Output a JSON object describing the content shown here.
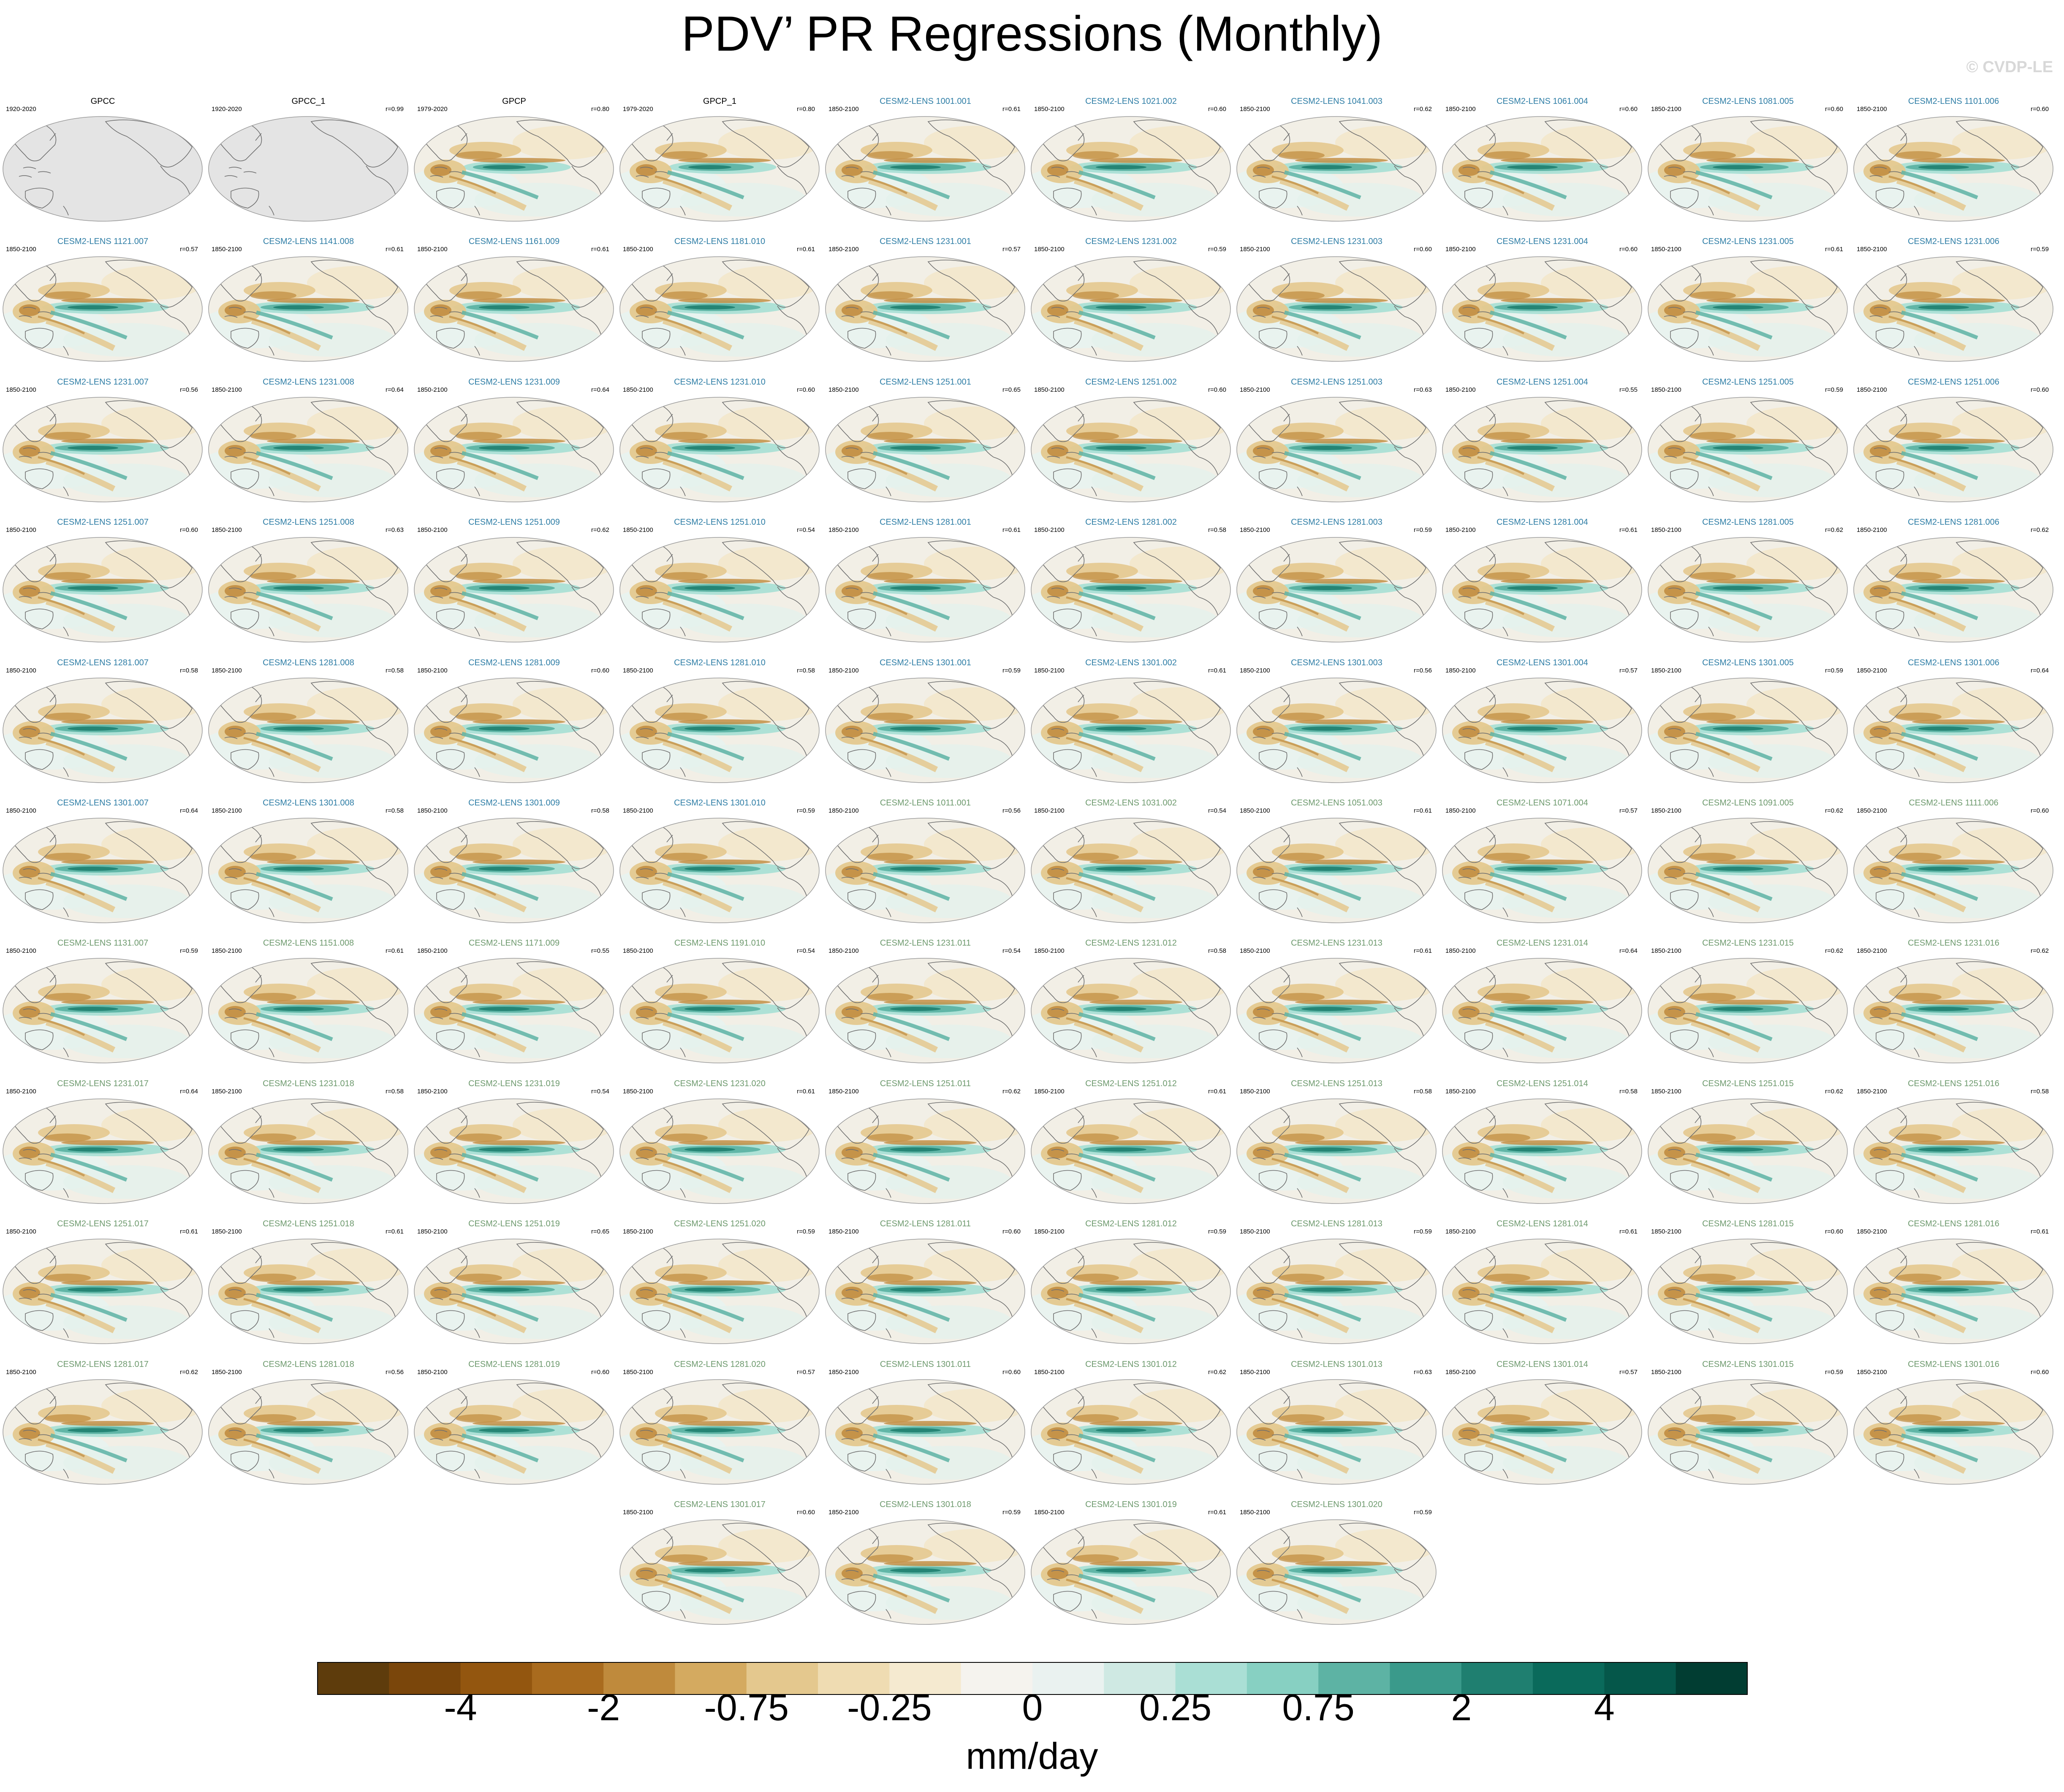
{
  "title": "PDV’ PR Regressions (Monthly)",
  "credit": "© CVDP-LE",
  "chart_data": {
    "type": "heatmap",
    "title": "PDV’ PR Regressions (Monthly)",
    "units": "mm/day",
    "colorbar": {
      "tick_labels": [
        "-4",
        "-2",
        "-0.75",
        "-0.25",
        "0",
        "0.25",
        "0.75",
        "2",
        "4"
      ],
      "colors": [
        "#5e3c0c",
        "#7a460b",
        "#93560f",
        "#a96b1e",
        "#bf8a3c",
        "#d4aa60",
        "#e4c88e",
        "#efdcb2",
        "#f5ead0",
        "#f5f3ee",
        "#eaf2f0",
        "#cfe9e3",
        "#aadfd5",
        "#87d0c2",
        "#5db3a4",
        "#3a9a8b",
        "#1f7f70",
        "#0a6a5b",
        "#05574a",
        "#013d32"
      ]
    },
    "panels": [
      {
        "name": "GPCC",
        "period": "1920-2020",
        "r": "",
        "kind": "obs",
        "style": "obs"
      },
      {
        "name": "GPCC_1",
        "period": "1920-2020",
        "r": "r=0.99",
        "kind": "obs",
        "style": "obs"
      },
      {
        "name": "GPCP",
        "period": "1979-2020",
        "r": "r=0.80",
        "kind": "gpcp",
        "style": "obs"
      },
      {
        "name": "GPCP_1",
        "period": "1979-2020",
        "r": "r=0.80",
        "kind": "gpcp",
        "style": "obs"
      },
      {
        "name": "CESM2-LENS 1001.001",
        "period": "1850-2100",
        "r": "r=0.61",
        "kind": "model",
        "style": "blue"
      },
      {
        "name": "CESM2-LENS 1021.002",
        "period": "1850-2100",
        "r": "r=0.60",
        "kind": "model",
        "style": "blue"
      },
      {
        "name": "CESM2-LENS 1041.003",
        "period": "1850-2100",
        "r": "r=0.62",
        "kind": "model",
        "style": "blue"
      },
      {
        "name": "CESM2-LENS 1061.004",
        "period": "1850-2100",
        "r": "r=0.60",
        "kind": "model",
        "style": "blue"
      },
      {
        "name": "CESM2-LENS 1081.005",
        "period": "1850-2100",
        "r": "r=0.60",
        "kind": "model",
        "style": "blue"
      },
      {
        "name": "CESM2-LENS 1101.006",
        "period": "1850-2100",
        "r": "r=0.60",
        "kind": "model",
        "style": "blue"
      },
      {
        "name": "CESM2-LENS 1121.007",
        "period": "1850-2100",
        "r": "r=0.57",
        "kind": "model",
        "style": "blue"
      },
      {
        "name": "CESM2-LENS 1141.008",
        "period": "1850-2100",
        "r": "r=0.61",
        "kind": "model",
        "style": "blue"
      },
      {
        "name": "CESM2-LENS 1161.009",
        "period": "1850-2100",
        "r": "r=0.61",
        "kind": "model",
        "style": "blue"
      },
      {
        "name": "CESM2-LENS 1181.010",
        "period": "1850-2100",
        "r": "r=0.61",
        "kind": "model",
        "style": "blue"
      },
      {
        "name": "CESM2-LENS 1231.001",
        "period": "1850-2100",
        "r": "r=0.57",
        "kind": "model",
        "style": "blue"
      },
      {
        "name": "CESM2-LENS 1231.002",
        "period": "1850-2100",
        "r": "r=0.59",
        "kind": "model",
        "style": "blue"
      },
      {
        "name": "CESM2-LENS 1231.003",
        "period": "1850-2100",
        "r": "r=0.60",
        "kind": "model",
        "style": "blue"
      },
      {
        "name": "CESM2-LENS 1231.004",
        "period": "1850-2100",
        "r": "r=0.60",
        "kind": "model",
        "style": "blue"
      },
      {
        "name": "CESM2-LENS 1231.005",
        "period": "1850-2100",
        "r": "r=0.61",
        "kind": "model",
        "style": "blue"
      },
      {
        "name": "CESM2-LENS 1231.006",
        "period": "1850-2100",
        "r": "r=0.59",
        "kind": "model",
        "style": "blue"
      },
      {
        "name": "CESM2-LENS 1231.007",
        "period": "1850-2100",
        "r": "r=0.56",
        "kind": "model",
        "style": "blue"
      },
      {
        "name": "CESM2-LENS 1231.008",
        "period": "1850-2100",
        "r": "r=0.64",
        "kind": "model",
        "style": "blue"
      },
      {
        "name": "CESM2-LENS 1231.009",
        "period": "1850-2100",
        "r": "r=0.64",
        "kind": "model",
        "style": "blue"
      },
      {
        "name": "CESM2-LENS 1231.010",
        "period": "1850-2100",
        "r": "r=0.60",
        "kind": "model",
        "style": "blue"
      },
      {
        "name": "CESM2-LENS 1251.001",
        "period": "1850-2100",
        "r": "r=0.65",
        "kind": "model",
        "style": "blue"
      },
      {
        "name": "CESM2-LENS 1251.002",
        "period": "1850-2100",
        "r": "r=0.60",
        "kind": "model",
        "style": "blue"
      },
      {
        "name": "CESM2-LENS 1251.003",
        "period": "1850-2100",
        "r": "r=0.63",
        "kind": "model",
        "style": "blue"
      },
      {
        "name": "CESM2-LENS 1251.004",
        "period": "1850-2100",
        "r": "r=0.55",
        "kind": "model",
        "style": "blue"
      },
      {
        "name": "CESM2-LENS 1251.005",
        "period": "1850-2100",
        "r": "r=0.59",
        "kind": "model",
        "style": "blue"
      },
      {
        "name": "CESM2-LENS 1251.006",
        "period": "1850-2100",
        "r": "r=0.60",
        "kind": "model",
        "style": "blue"
      },
      {
        "name": "CESM2-LENS 1251.007",
        "period": "1850-2100",
        "r": "r=0.60",
        "kind": "model",
        "style": "blue"
      },
      {
        "name": "CESM2-LENS 1251.008",
        "period": "1850-2100",
        "r": "r=0.63",
        "kind": "model",
        "style": "blue"
      },
      {
        "name": "CESM2-LENS 1251.009",
        "period": "1850-2100",
        "r": "r=0.62",
        "kind": "model",
        "style": "blue"
      },
      {
        "name": "CESM2-LENS 1251.010",
        "period": "1850-2100",
        "r": "r=0.54",
        "kind": "model",
        "style": "blue"
      },
      {
        "name": "CESM2-LENS 1281.001",
        "period": "1850-2100",
        "r": "r=0.61",
        "kind": "model",
        "style": "blue"
      },
      {
        "name": "CESM2-LENS 1281.002",
        "period": "1850-2100",
        "r": "r=0.58",
        "kind": "model",
        "style": "blue"
      },
      {
        "name": "CESM2-LENS 1281.003",
        "period": "1850-2100",
        "r": "r=0.59",
        "kind": "model",
        "style": "blue"
      },
      {
        "name": "CESM2-LENS 1281.004",
        "period": "1850-2100",
        "r": "r=0.61",
        "kind": "model",
        "style": "blue"
      },
      {
        "name": "CESM2-LENS 1281.005",
        "period": "1850-2100",
        "r": "r=0.62",
        "kind": "model",
        "style": "blue"
      },
      {
        "name": "CESM2-LENS 1281.006",
        "period": "1850-2100",
        "r": "r=0.62",
        "kind": "model",
        "style": "blue"
      },
      {
        "name": "CESM2-LENS 1281.007",
        "period": "1850-2100",
        "r": "r=0.58",
        "kind": "model",
        "style": "blue"
      },
      {
        "name": "CESM2-LENS 1281.008",
        "period": "1850-2100",
        "r": "r=0.58",
        "kind": "model",
        "style": "blue"
      },
      {
        "name": "CESM2-LENS 1281.009",
        "period": "1850-2100",
        "r": "r=0.60",
        "kind": "model",
        "style": "blue"
      },
      {
        "name": "CESM2-LENS 1281.010",
        "period": "1850-2100",
        "r": "r=0.58",
        "kind": "model",
        "style": "blue"
      },
      {
        "name": "CESM2-LENS 1301.001",
        "period": "1850-2100",
        "r": "r=0.59",
        "kind": "model",
        "style": "blue"
      },
      {
        "name": "CESM2-LENS 1301.002",
        "period": "1850-2100",
        "r": "r=0.61",
        "kind": "model",
        "style": "blue"
      },
      {
        "name": "CESM2-LENS 1301.003",
        "period": "1850-2100",
        "r": "r=0.56",
        "kind": "model",
        "style": "blue"
      },
      {
        "name": "CESM2-LENS 1301.004",
        "period": "1850-2100",
        "r": "r=0.57",
        "kind": "model",
        "style": "blue"
      },
      {
        "name": "CESM2-LENS 1301.005",
        "period": "1850-2100",
        "r": "r=0.59",
        "kind": "model",
        "style": "blue"
      },
      {
        "name": "CESM2-LENS 1301.006",
        "period": "1850-2100",
        "r": "r=0.64",
        "kind": "model",
        "style": "blue"
      },
      {
        "name": "CESM2-LENS 1301.007",
        "period": "1850-2100",
        "r": "r=0.64",
        "kind": "model",
        "style": "blue"
      },
      {
        "name": "CESM2-LENS 1301.008",
        "period": "1850-2100",
        "r": "r=0.58",
        "kind": "model",
        "style": "blue"
      },
      {
        "name": "CESM2-LENS 1301.009",
        "period": "1850-2100",
        "r": "r=0.58",
        "kind": "model",
        "style": "blue"
      },
      {
        "name": "CESM2-LENS 1301.010",
        "period": "1850-2100",
        "r": "r=0.59",
        "kind": "model",
        "style": "blue"
      },
      {
        "name": "CESM2-LENS 1011.001",
        "period": "1850-2100",
        "r": "r=0.56",
        "kind": "model",
        "style": "green"
      },
      {
        "name": "CESM2-LENS 1031.002",
        "period": "1850-2100",
        "r": "r=0.54",
        "kind": "model",
        "style": "green"
      },
      {
        "name": "CESM2-LENS 1051.003",
        "period": "1850-2100",
        "r": "r=0.61",
        "kind": "model",
        "style": "green"
      },
      {
        "name": "CESM2-LENS 1071.004",
        "period": "1850-2100",
        "r": "r=0.57",
        "kind": "model",
        "style": "green"
      },
      {
        "name": "CESM2-LENS 1091.005",
        "period": "1850-2100",
        "r": "r=0.62",
        "kind": "model",
        "style": "green"
      },
      {
        "name": "CESM2-LENS 1111.006",
        "period": "1850-2100",
        "r": "r=0.60",
        "kind": "model",
        "style": "green"
      },
      {
        "name": "CESM2-LENS 1131.007",
        "period": "1850-2100",
        "r": "r=0.59",
        "kind": "model",
        "style": "green"
      },
      {
        "name": "CESM2-LENS 1151.008",
        "period": "1850-2100",
        "r": "r=0.61",
        "kind": "model",
        "style": "green"
      },
      {
        "name": "CESM2-LENS 1171.009",
        "period": "1850-2100",
        "r": "r=0.55",
        "kind": "model",
        "style": "green"
      },
      {
        "name": "CESM2-LENS 1191.010",
        "period": "1850-2100",
        "r": "r=0.54",
        "kind": "model",
        "style": "green"
      },
      {
        "name": "CESM2-LENS 1231.011",
        "period": "1850-2100",
        "r": "r=0.54",
        "kind": "model",
        "style": "green"
      },
      {
        "name": "CESM2-LENS 1231.012",
        "period": "1850-2100",
        "r": "r=0.58",
        "kind": "model",
        "style": "green"
      },
      {
        "name": "CESM2-LENS 1231.013",
        "period": "1850-2100",
        "r": "r=0.61",
        "kind": "model",
        "style": "green"
      },
      {
        "name": "CESM2-LENS 1231.014",
        "period": "1850-2100",
        "r": "r=0.64",
        "kind": "model",
        "style": "green"
      },
      {
        "name": "CESM2-LENS 1231.015",
        "period": "1850-2100",
        "r": "r=0.62",
        "kind": "model",
        "style": "green"
      },
      {
        "name": "CESM2-LENS 1231.016",
        "period": "1850-2100",
        "r": "r=0.62",
        "kind": "model",
        "style": "green"
      },
      {
        "name": "CESM2-LENS 1231.017",
        "period": "1850-2100",
        "r": "r=0.64",
        "kind": "model",
        "style": "green"
      },
      {
        "name": "CESM2-LENS 1231.018",
        "period": "1850-2100",
        "r": "r=0.58",
        "kind": "model",
        "style": "green"
      },
      {
        "name": "CESM2-LENS 1231.019",
        "period": "1850-2100",
        "r": "r=0.54",
        "kind": "model",
        "style": "green"
      },
      {
        "name": "CESM2-LENS 1231.020",
        "period": "1850-2100",
        "r": "r=0.61",
        "kind": "model",
        "style": "green"
      },
      {
        "name": "CESM2-LENS 1251.011",
        "period": "1850-2100",
        "r": "r=0.62",
        "kind": "model",
        "style": "green"
      },
      {
        "name": "CESM2-LENS 1251.012",
        "period": "1850-2100",
        "r": "r=0.61",
        "kind": "model",
        "style": "green"
      },
      {
        "name": "CESM2-LENS 1251.013",
        "period": "1850-2100",
        "r": "r=0.58",
        "kind": "model",
        "style": "green"
      },
      {
        "name": "CESM2-LENS 1251.014",
        "period": "1850-2100",
        "r": "r=0.58",
        "kind": "model",
        "style": "green"
      },
      {
        "name": "CESM2-LENS 1251.015",
        "period": "1850-2100",
        "r": "r=0.62",
        "kind": "model",
        "style": "green"
      },
      {
        "name": "CESM2-LENS 1251.016",
        "period": "1850-2100",
        "r": "r=0.58",
        "kind": "model",
        "style": "green"
      },
      {
        "name": "CESM2-LENS 1251.017",
        "period": "1850-2100",
        "r": "r=0.61",
        "kind": "model",
        "style": "green"
      },
      {
        "name": "CESM2-LENS 1251.018",
        "period": "1850-2100",
        "r": "r=0.61",
        "kind": "model",
        "style": "green"
      },
      {
        "name": "CESM2-LENS 1251.019",
        "period": "1850-2100",
        "r": "r=0.65",
        "kind": "model",
        "style": "green"
      },
      {
        "name": "CESM2-LENS 1251.020",
        "period": "1850-2100",
        "r": "r=0.59",
        "kind": "model",
        "style": "green"
      },
      {
        "name": "CESM2-LENS 1281.011",
        "period": "1850-2100",
        "r": "r=0.60",
        "kind": "model",
        "style": "green"
      },
      {
        "name": "CESM2-LENS 1281.012",
        "period": "1850-2100",
        "r": "r=0.59",
        "kind": "model",
        "style": "green"
      },
      {
        "name": "CESM2-LENS 1281.013",
        "period": "1850-2100",
        "r": "r=0.59",
        "kind": "model",
        "style": "green"
      },
      {
        "name": "CESM2-LENS 1281.014",
        "period": "1850-2100",
        "r": "r=0.61",
        "kind": "model",
        "style": "green"
      },
      {
        "name": "CESM2-LENS 1281.015",
        "period": "1850-2100",
        "r": "r=0.60",
        "kind": "model",
        "style": "green"
      },
      {
        "name": "CESM2-LENS 1281.016",
        "period": "1850-2100",
        "r": "r=0.61",
        "kind": "model",
        "style": "green"
      },
      {
        "name": "CESM2-LENS 1281.017",
        "period": "1850-2100",
        "r": "r=0.62",
        "kind": "model",
        "style": "green"
      },
      {
        "name": "CESM2-LENS 1281.018",
        "period": "1850-2100",
        "r": "r=0.56",
        "kind": "model",
        "style": "green"
      },
      {
        "name": "CESM2-LENS 1281.019",
        "period": "1850-2100",
        "r": "r=0.60",
        "kind": "model",
        "style": "green"
      },
      {
        "name": "CESM2-LENS 1281.020",
        "period": "1850-2100",
        "r": "r=0.57",
        "kind": "model",
        "style": "green"
      },
      {
        "name": "CESM2-LENS 1301.011",
        "period": "1850-2100",
        "r": "r=0.60",
        "kind": "model",
        "style": "green"
      },
      {
        "name": "CESM2-LENS 1301.012",
        "period": "1850-2100",
        "r": "r=0.62",
        "kind": "model",
        "style": "green"
      },
      {
        "name": "CESM2-LENS 1301.013",
        "period": "1850-2100",
        "r": "r=0.63",
        "kind": "model",
        "style": "green"
      },
      {
        "name": "CESM2-LENS 1301.014",
        "period": "1850-2100",
        "r": "r=0.57",
        "kind": "model",
        "style": "green"
      },
      {
        "name": "CESM2-LENS 1301.015",
        "period": "1850-2100",
        "r": "r=0.59",
        "kind": "model",
        "style": "green"
      },
      {
        "name": "CESM2-LENS 1301.016",
        "period": "1850-2100",
        "r": "r=0.60",
        "kind": "model",
        "style": "green"
      },
      {
        "name": "CESM2-LENS 1301.017",
        "period": "1850-2100",
        "r": "r=0.60",
        "kind": "model",
        "style": "green"
      },
      {
        "name": "CESM2-LENS 1301.018",
        "period": "1850-2100",
        "r": "r=0.59",
        "kind": "model",
        "style": "green"
      },
      {
        "name": "CESM2-LENS 1301.019",
        "period": "1850-2100",
        "r": "r=0.61",
        "kind": "model",
        "style": "green"
      },
      {
        "name": "CESM2-LENS 1301.020",
        "period": "1850-2100",
        "r": "r=0.59",
        "kind": "model",
        "style": "green"
      }
    ]
  }
}
